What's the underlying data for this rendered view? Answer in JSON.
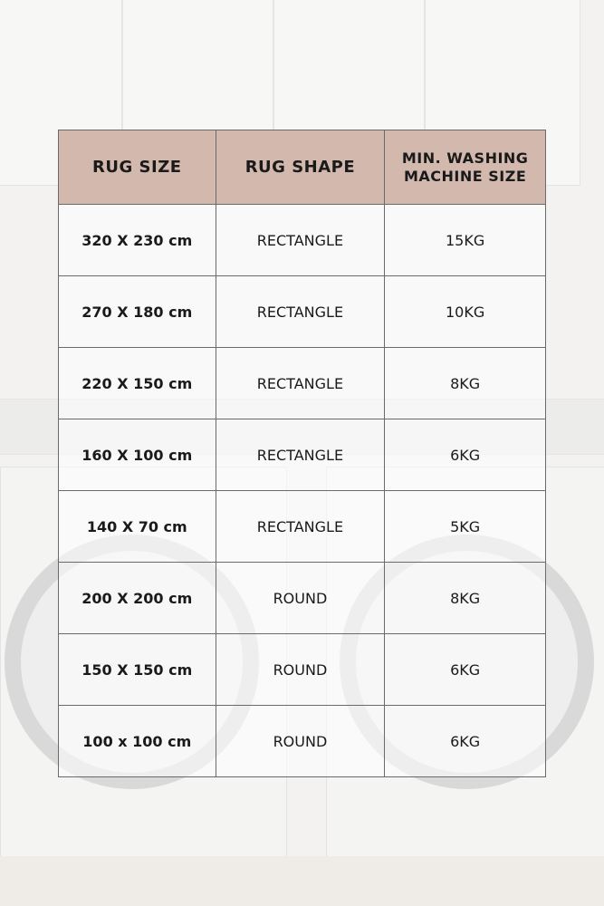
{
  "table": {
    "headers": [
      "RUG SIZE",
      "RUG SHAPE",
      "MIN. WASHING MACHINE SIZE"
    ],
    "rows": [
      {
        "size": "320 X 230 cm",
        "shape": "RECTANGLE",
        "machine": "15KG"
      },
      {
        "size": "270 X 180 cm",
        "shape": "RECTANGLE",
        "machine": "10KG"
      },
      {
        "size": "220 X 150 cm",
        "shape": "RECTANGLE",
        "machine": "8KG"
      },
      {
        "size": "160 X 100 cm",
        "shape": "RECTANGLE",
        "machine": "6KG"
      },
      {
        "size": "140 X 70 cm",
        "shape": "RECTANGLE",
        "machine": "5KG"
      },
      {
        "size": "200 X 200 cm",
        "shape": "ROUND",
        "machine": "8KG"
      },
      {
        "size": "150 X 150 cm",
        "shape": "ROUND",
        "machine": "6KG"
      },
      {
        "size": "100 x 100 cm",
        "shape": "ROUND",
        "machine": "6KG"
      }
    ]
  },
  "colors": {
    "header": "#d3b9ad",
    "border": "#6a6a6a"
  }
}
